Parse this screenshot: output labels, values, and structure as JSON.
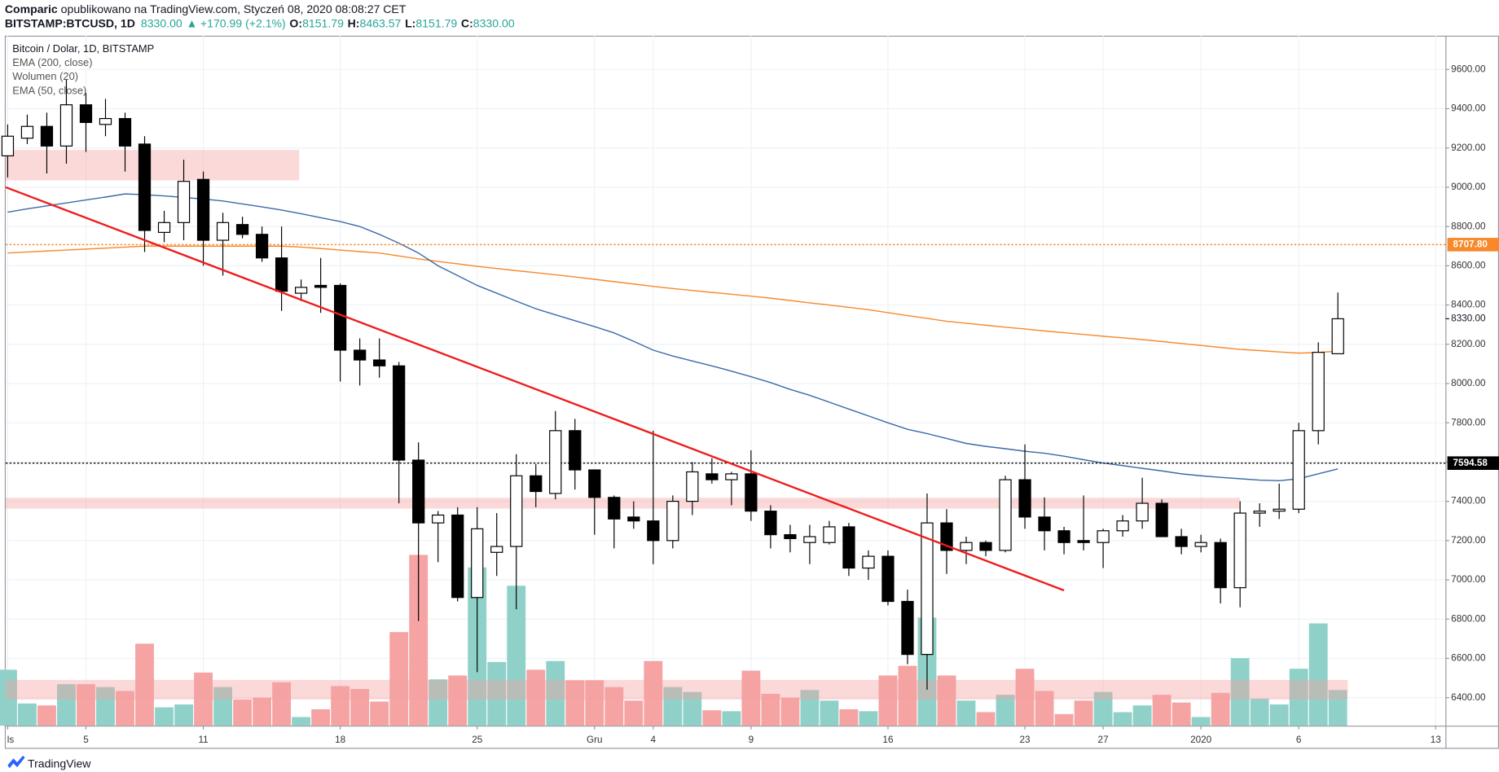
{
  "header": {
    "author": "Comparic",
    "published": " opublikowano na TradingView.com, Styczeń 08, 2020 08:08:27 CET",
    "symbol": "BITSTAMP:BTCUSD, 1D",
    "last": "8330.00",
    "arrow": "▲",
    "change": "+170.99 (+2.1%)",
    "ohlc": [
      {
        "label": "O:",
        "value": "8151.79"
      },
      {
        "label": "H:",
        "value": "8463.57"
      },
      {
        "label": "L:",
        "value": "8151.79"
      },
      {
        "label": "C:",
        "value": "8330.00"
      }
    ]
  },
  "footer": {
    "brand": "TradingView"
  },
  "chart_data": {
    "type": "candlestick",
    "title": "Bitcoin / Dolar, 1D, BITSTAMP",
    "x": [
      0,
      1,
      2,
      3,
      4,
      5,
      6,
      7,
      8,
      9,
      10,
      11,
      12,
      13,
      14,
      15,
      16,
      17,
      18,
      19,
      20,
      21,
      22,
      23,
      24,
      25,
      26,
      27,
      28,
      29,
      30,
      31,
      32,
      33,
      34,
      35,
      36,
      37,
      38,
      39,
      40,
      41,
      42,
      43,
      44,
      45,
      46,
      47,
      48,
      49,
      50,
      51,
      52,
      53,
      54,
      55,
      56,
      57,
      58,
      59,
      60,
      61,
      62,
      63,
      64,
      65,
      66,
      67,
      68
    ],
    "open": [
      9160,
      9250,
      9310,
      9210,
      9420,
      9320,
      9350,
      9220,
      8770,
      8820,
      9040,
      8730,
      8810,
      8760,
      8640,
      8460,
      8500,
      8500,
      8170,
      8120,
      8090,
      7610,
      7290,
      7330,
      6910,
      7140,
      7170,
      7530,
      7440,
      7760,
      7560,
      7420,
      7320,
      7300,
      7200,
      7400,
      7540,
      7510,
      7540,
      7350,
      7230,
      7190,
      7190,
      7270,
      7060,
      7120,
      6890,
      6620,
      7290,
      7150,
      7190,
      7150,
      7510,
      7320,
      7250,
      7200,
      7190,
      7250,
      7300,
      7390,
      7220,
      7170,
      7190,
      6960,
      7340,
      7350,
      7360,
      7760,
      8151.79
    ],
    "high": [
      9320,
      9370,
      9380,
      9550,
      9480,
      9450,
      9380,
      9260,
      8880,
      9140,
      9080,
      8870,
      8850,
      8800,
      8800,
      8530,
      8640,
      8510,
      8230,
      8230,
      8110,
      7700,
      7350,
      7370,
      7370,
      7340,
      7640,
      7590,
      7860,
      7820,
      7560,
      7430,
      7400,
      7760,
      7430,
      7600,
      7620,
      7550,
      7660,
      7380,
      7280,
      7280,
      7300,
      7290,
      7150,
      7150,
      6950,
      7440,
      7360,
      7220,
      7200,
      7530,
      7690,
      7420,
      7270,
      7430,
      7260,
      7330,
      7520,
      7410,
      7260,
      7230,
      7210,
      7400,
      7390,
      7490,
      7800,
      8210,
      8463.57
    ],
    "low": [
      9050,
      9220,
      9070,
      9120,
      9180,
      9260,
      9080,
      8670,
      8720,
      8730,
      8600,
      8550,
      8740,
      8620,
      8370,
      8420,
      8360,
      8010,
      7990,
      8030,
      7390,
      6790,
      7090,
      6890,
      6530,
      7020,
      6850,
      7370,
      7410,
      7460,
      7230,
      7160,
      7260,
      7080,
      7160,
      7330,
      7490,
      7380,
      7300,
      7160,
      7140,
      7080,
      7180,
      7020,
      7000,
      6870,
      6570,
      6440,
      7030,
      7080,
      7120,
      7140,
      7260,
      7150,
      7130,
      7150,
      7060,
      7220,
      7260,
      7220,
      7130,
      7140,
      6880,
      6860,
      7270,
      7310,
      7340,
      7690,
      8151.79
    ],
    "close": [
      9260,
      9310,
      9210,
      9420,
      9330,
      9350,
      9210,
      8780,
      8820,
      9030,
      8730,
      8820,
      8760,
      8640,
      8470,
      8490,
      8490,
      8170,
      8120,
      8090,
      7610,
      7290,
      7330,
      6910,
      7260,
      7170,
      7530,
      7450,
      7760,
      7560,
      7420,
      7310,
      7300,
      7200,
      7400,
      7550,
      7510,
      7540,
      7350,
      7230,
      7210,
      7220,
      7270,
      7060,
      7120,
      6890,
      6620,
      7290,
      7150,
      7190,
      7150,
      7510,
      7320,
      7250,
      7190,
      7190,
      7250,
      7300,
      7390,
      7220,
      7170,
      7190,
      6960,
      7340,
      7350,
      7360,
      7760,
      8159.01,
      8330
    ],
    "up_color": "#ffffff",
    "down_color": "#000000",
    "wick_color": "#000000",
    "series": [
      {
        "name": "EMA (200, close)",
        "color": "#f7892b",
        "values": [
          8665,
          8670,
          8675,
          8680,
          8685,
          8690,
          8695,
          8700,
          8700,
          8700,
          8700,
          8700,
          8700,
          8700,
          8700,
          8695,
          8688,
          8680,
          8672,
          8665,
          8650,
          8635,
          8622,
          8610,
          8597,
          8586,
          8575,
          8565,
          8554,
          8543,
          8531,
          8519,
          8507,
          8495,
          8484,
          8474,
          8464,
          8455,
          8445,
          8435,
          8423,
          8411,
          8400,
          8388,
          8376,
          8361,
          8346,
          8332,
          8317,
          8307,
          8297,
          8287,
          8278,
          8268,
          8259,
          8250,
          8241,
          8233,
          8224,
          8214,
          8204,
          8194,
          8184,
          8174,
          8168,
          8161,
          8155,
          8158,
          8165
        ]
      },
      {
        "name": "EMA (50, close)",
        "color": "#3b6aa8",
        "values": [
          8873,
          8890,
          8905,
          8920,
          8935,
          8950,
          8966,
          8962,
          8956,
          8948,
          8940,
          8930,
          8915,
          8900,
          8884,
          8865,
          8845,
          8825,
          8800,
          8760,
          8715,
          8665,
          8600,
          8550,
          8500,
          8460,
          8420,
          8381,
          8350,
          8320,
          8290,
          8258,
          8215,
          8170,
          8140,
          8115,
          8090,
          8063,
          8035,
          8005,
          7970,
          7940,
          7905,
          7870,
          7835,
          7800,
          7767,
          7745,
          7720,
          7695,
          7680,
          7668,
          7655,
          7645,
          7630,
          7612,
          7595,
          7582,
          7568,
          7555,
          7540,
          7530,
          7522,
          7515,
          7508,
          7505,
          7515,
          7540,
          7565
        ]
      }
    ],
    "volume": {
      "name": "Wolumen (20)",
      "up_color": "#8fd1c8",
      "down_color": "#f5a3a3",
      "ylim": [
        0,
        200
      ],
      "values": [
        58,
        23,
        21,
        43,
        43,
        40,
        36,
        85,
        19,
        22,
        55,
        40,
        27,
        29,
        45,
        9,
        17,
        41,
        38,
        25,
        97,
        177,
        48,
        52,
        164,
        66,
        145,
        58,
        67,
        47,
        47,
        40,
        26,
        67,
        40,
        35,
        16,
        15,
        57,
        33,
        29,
        37,
        26,
        17,
        15,
        52,
        62,
        112,
        52,
        26,
        14,
        32,
        59,
        36,
        12,
        26,
        35,
        14,
        21,
        32,
        24,
        9,
        34,
        70,
        28,
        22,
        59,
        106,
        37
      ]
    },
    "ylim": [
      6257,
      9772
    ],
    "yticks": [
      {
        "value": 6400,
        "label": "6400.00"
      },
      {
        "value": 6600,
        "label": "6600.00"
      },
      {
        "value": 6800,
        "label": "6800.00"
      },
      {
        "value": 7000,
        "label": "7000.00"
      },
      {
        "value": 7200,
        "label": "7200.00"
      },
      {
        "value": 7400,
        "label": "7400.00"
      },
      {
        "value": 7600,
        "label": "7600.00"
      },
      {
        "value": 7800,
        "label": "7800.00"
      },
      {
        "value": 8000,
        "label": "8000.00"
      },
      {
        "value": 8200,
        "label": "8200.00"
      },
      {
        "value": 8400,
        "label": "8400.00"
      },
      {
        "value": 8600,
        "label": "8600.00"
      },
      {
        "value": 8800,
        "label": "8800.00"
      },
      {
        "value": 9000,
        "label": "9000.00"
      },
      {
        "value": 9200,
        "label": "9200.00"
      },
      {
        "value": 9400,
        "label": "9400.00"
      },
      {
        "value": 9600,
        "label": "9600.00"
      }
    ],
    "xlim": [
      -0.1,
      73.5
    ],
    "xticks": [
      {
        "value": 0,
        "label": "ls"
      },
      {
        "value": 4,
        "label": "5"
      },
      {
        "value": 10,
        "label": "11"
      },
      {
        "value": 17,
        "label": "18"
      },
      {
        "value": 24,
        "label": "25"
      },
      {
        "value": 30,
        "label": "Gru"
      },
      {
        "value": 33,
        "label": "4"
      },
      {
        "value": 38,
        "label": "9"
      },
      {
        "value": 45,
        "label": "16"
      },
      {
        "value": 52,
        "label": "23"
      },
      {
        "value": 56,
        "label": "27"
      },
      {
        "value": 61,
        "label": "2020"
      },
      {
        "value": 66,
        "label": "6"
      },
      {
        "value": 73,
        "label": "13"
      }
    ],
    "grid": true,
    "price_lines": [
      {
        "value": 8707.8,
        "label": "8707.80",
        "color": "#f7892b"
      },
      {
        "value": 7594.58,
        "label": "7594.58",
        "color": "#000000"
      }
    ],
    "last_price": {
      "value": 8330,
      "label": "8330.00"
    },
    "trend_line": {
      "x": [
        -0.1,
        54
      ],
      "y": [
        9000,
        6946
      ],
      "color": "#ee1c1c"
    },
    "zones": [
      {
        "x": [
          -0.1,
          14.9
        ],
        "y": [
          9035,
          9190
        ]
      },
      {
        "x": [
          -0.1,
          63
        ],
        "y": [
          7363,
          7418
        ]
      },
      {
        "x": [
          -0.1,
          68.5
        ],
        "y": [
          6390,
          6490
        ]
      }
    ],
    "zone_color": "#f4a0a0"
  }
}
